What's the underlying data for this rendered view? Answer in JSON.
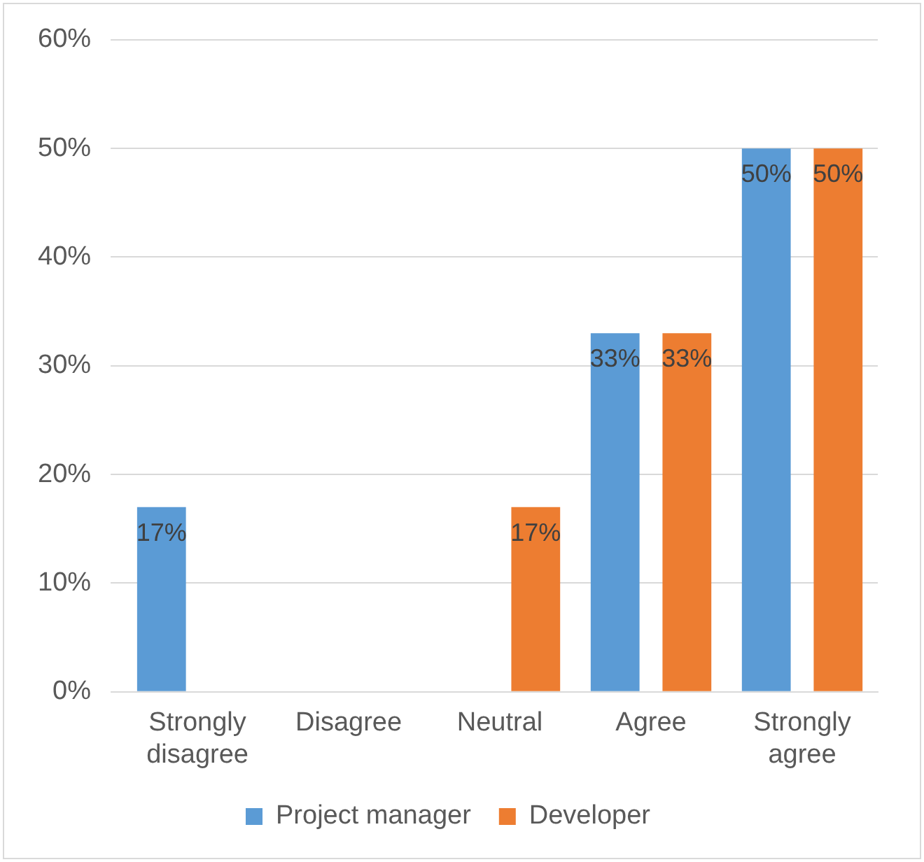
{
  "chart_data": {
    "type": "bar",
    "categories": [
      "Strongly disagree",
      "Disagree",
      "Neutral",
      "Agree",
      "Strongly agree"
    ],
    "series": [
      {
        "name": "Project manager",
        "color": "#5b9bd5",
        "values": [
          17,
          null,
          null,
          33,
          50
        ],
        "value_labels": [
          "17%",
          null,
          null,
          "33%",
          "50%"
        ]
      },
      {
        "name": "Developer",
        "color": "#ed7d31",
        "values": [
          null,
          null,
          17,
          33,
          50
        ],
        "value_labels": [
          null,
          null,
          "17%",
          "33%",
          "50%"
        ]
      }
    ],
    "ylim": [
      0,
      60
    ],
    "yticks": [
      {
        "value": 0,
        "label": "0%"
      },
      {
        "value": 10,
        "label": "10%"
      },
      {
        "value": 20,
        "label": "20%"
      },
      {
        "value": 30,
        "label": "30%"
      },
      {
        "value": 40,
        "label": "40%"
      },
      {
        "value": 50,
        "label": "50%"
      },
      {
        "value": 60,
        "label": "60%"
      }
    ],
    "grid": "y",
    "legend": "bottom"
  }
}
